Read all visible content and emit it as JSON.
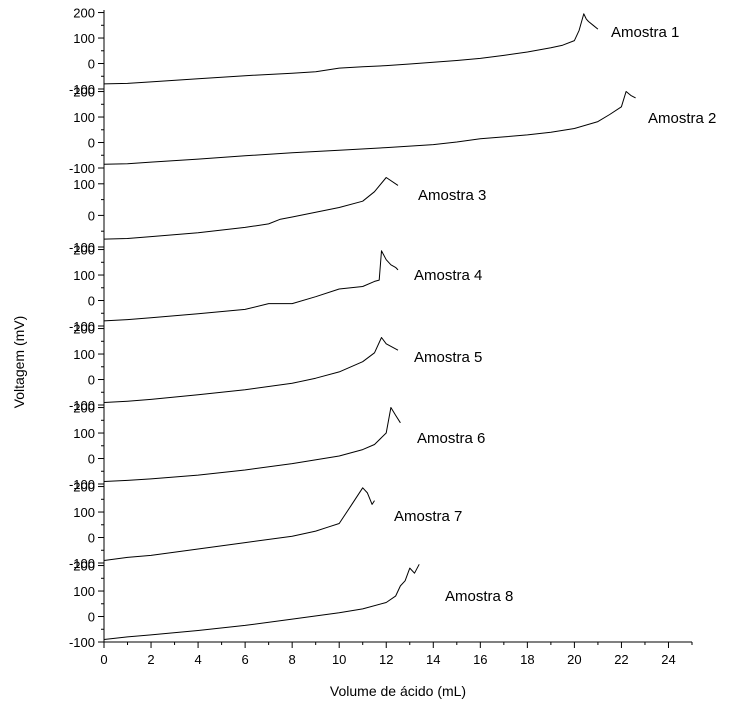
{
  "chart_data": {
    "type": "line",
    "xlabel": "Volume de ácido (mL)",
    "ylabel": "Voltagem (mV)",
    "xlim": [
      0,
      25
    ],
    "x_ticks": [
      0,
      2,
      4,
      6,
      8,
      10,
      12,
      14,
      16,
      18,
      20,
      22,
      24
    ],
    "grid": false,
    "panels": [
      {
        "name": "Amostra 1",
        "ylim": [
          -100,
          210
        ],
        "y_ticks": [
          -100,
          0,
          100,
          200
        ],
        "x": [
          0,
          1,
          2,
          4,
          6,
          8,
          9,
          10,
          11,
          12,
          13,
          14,
          15,
          16,
          17,
          18,
          19,
          19.5,
          20,
          20.2,
          20.4,
          20.5,
          20.6,
          20.8,
          21
        ],
        "y": [
          -80,
          -78,
          -72,
          -60,
          -48,
          -38,
          -32,
          -18,
          -13,
          -8,
          -2,
          5,
          12,
          20,
          32,
          45,
          62,
          72,
          90,
          130,
          195,
          175,
          165,
          150,
          135
        ]
      },
      {
        "name": "Amostra 2",
        "ylim": [
          -100,
          210
        ],
        "y_ticks": [
          -100,
          0,
          100,
          200
        ],
        "x": [
          0,
          1,
          2,
          4,
          6,
          8,
          10,
          12,
          14,
          15,
          16,
          17,
          18,
          19,
          20,
          21,
          21.5,
          22,
          22.2,
          22.4,
          22.6
        ],
        "y": [
          -85,
          -83,
          -77,
          -65,
          -52,
          -40,
          -30,
          -20,
          -8,
          2,
          15,
          22,
          30,
          40,
          55,
          82,
          110,
          140,
          200,
          185,
          175
        ]
      },
      {
        "name": "Amostra 3",
        "ylim": [
          -100,
          150
        ],
        "y_ticks": [
          -100,
          0,
          100
        ],
        "x": [
          0,
          1,
          2,
          4,
          6,
          7,
          7.5,
          8,
          9,
          10,
          11,
          11.5,
          12,
          12.5
        ],
        "y": [
          -75,
          -73,
          -67,
          -55,
          -38,
          -27,
          -12,
          -5,
          10,
          25,
          45,
          75,
          120,
          95
        ]
      },
      {
        "name": "Amostra 4",
        "ylim": [
          -100,
          210
        ],
        "y_ticks": [
          -100,
          0,
          100,
          200
        ],
        "x": [
          0,
          1,
          2,
          4,
          6,
          7,
          8,
          9,
          10,
          11,
          11.5,
          11.7,
          11.8,
          12,
          12.2,
          12.4,
          12.5
        ],
        "y": [
          -80,
          -75,
          -68,
          -52,
          -35,
          -12,
          -12,
          15,
          45,
          55,
          75,
          80,
          195,
          160,
          140,
          130,
          120
        ]
      },
      {
        "name": "Amostra 5",
        "ylim": [
          -100,
          210
        ],
        "y_ticks": [
          -100,
          0,
          100,
          200
        ],
        "x": [
          0,
          1,
          2,
          4,
          6,
          8,
          9,
          10,
          11,
          11.5,
          11.8,
          12,
          12.5
        ],
        "y": [
          -90,
          -85,
          -78,
          -60,
          -40,
          -15,
          5,
          30,
          70,
          105,
          165,
          140,
          115
        ]
      },
      {
        "name": "Amostra 6",
        "ylim": [
          -100,
          210
        ],
        "y_ticks": [
          -100,
          0,
          100,
          200
        ],
        "x": [
          0,
          1,
          2,
          4,
          6,
          8,
          10,
          11,
          11.5,
          12,
          12.2,
          12.4,
          12.6
        ],
        "y": [
          -90,
          -86,
          -80,
          -65,
          -45,
          -20,
          10,
          35,
          55,
          100,
          200,
          170,
          140
        ]
      },
      {
        "name": "Amostra 7",
        "ylim": [
          -100,
          210
        ],
        "y_ticks": [
          -100,
          0,
          100,
          200
        ],
        "x": [
          0,
          1,
          2,
          4,
          6,
          8,
          9,
          9.5,
          10,
          10.5,
          11,
          11.2,
          11.4,
          11.5
        ],
        "y": [
          -90,
          -78,
          -70,
          -45,
          -20,
          5,
          25,
          40,
          55,
          125,
          195,
          175,
          130,
          145
        ]
      },
      {
        "name": "Amostra 8",
        "ylim": [
          -100,
          210
        ],
        "y_ticks": [
          -100,
          0,
          100,
          200
        ],
        "x": [
          0,
          1,
          2,
          4,
          6,
          8,
          10,
          11,
          12,
          12.4,
          12.6,
          12.8,
          13,
          13.2,
          13.4
        ],
        "y": [
          -90,
          -80,
          -72,
          -55,
          -35,
          -10,
          15,
          30,
          55,
          80,
          120,
          140,
          190,
          170,
          205
        ]
      }
    ]
  }
}
